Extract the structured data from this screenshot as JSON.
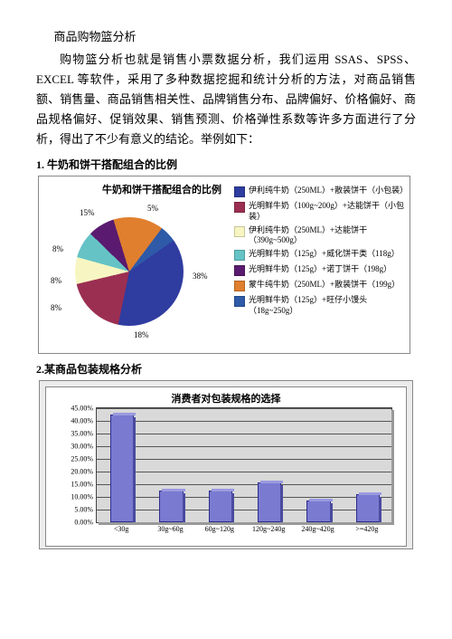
{
  "doc": {
    "title": "商品购物篮分析",
    "paragraph": "购物篮分析也就是销售小票数据分析，我们运用 SSAS、SPSS、EXCEL 等软件，采用了多种数据挖掘和统计分析的方法，对商品销售额、销售量、商品销售相关性、品牌销售分布、品牌偏好、价格偏好、商品规格偏好、促销效果、销售预测、价格弹性系数等许多方面进行了分析，得出了不少有意义的结论。举例如下："
  },
  "section1": "1. 牛奶和饼干搭配组合的比例",
  "section2": "2.某商品包装规格分析",
  "pie": {
    "title": "牛奶和饼干搭配组合的比例",
    "slices": [
      {
        "pct": 38,
        "color": "#2f3ca0",
        "label": "38%",
        "legend": "伊利纯牛奶（250ML）+散装饼干（小包装）"
      },
      {
        "pct": 18,
        "color": "#9b2f52",
        "label": "18%",
        "legend": "光明鲜牛奶（100g~200g）+达能饼干（小包装）"
      },
      {
        "pct": 8,
        "color": "#f7f6c2",
        "label": "8%",
        "legend": "伊利纯牛奶（250ML）+达能饼干（390g~500g）"
      },
      {
        "pct": 8,
        "color": "#65c3c6",
        "label": "8%",
        "legend": "光明鲜牛奶（125g）+威化饼干类（118g）"
      },
      {
        "pct": 8,
        "color": "#5a1a6f",
        "label": "8%",
        "legend": "光明鲜牛奶（125g）+诺丁饼干（198g）"
      },
      {
        "pct": 15,
        "color": "#e07f2e",
        "label": "15%",
        "legend": "蒙牛纯牛奶（250ML）+散装饼干（199g）"
      },
      {
        "pct": 5,
        "color": "#2e5aa8",
        "label": "5%",
        "legend": "光明鲜牛奶（125g）+旺仔小馒头（18g~250g）"
      }
    ]
  },
  "bar": {
    "title": "消费者对包装规格的选择",
    "ymax": 45,
    "ystep": 5,
    "bar_color": "#7a7ad1",
    "categories": [
      "<30g",
      "30g~60g",
      "60g~120g",
      "120g~240g",
      "240g~420g",
      ">=420g"
    ],
    "values": [
      42.0,
      12.0,
      12.0,
      15.0,
      8.0,
      10.5
    ]
  }
}
